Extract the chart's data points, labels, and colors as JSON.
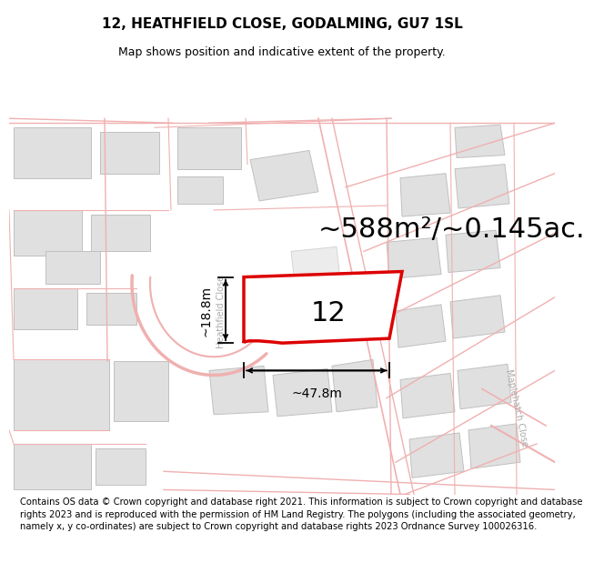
{
  "title_line1": "12, HEATHFIELD CLOSE, GODALMING, GU7 1SL",
  "title_line2": "Map shows position and indicative extent of the property.",
  "area_text": "~588m²/~0.145ac.",
  "plot_number": "12",
  "dim_width": "~47.8m",
  "dim_height": "~18.8m",
  "footer_text": "Contains OS data © Crown copyright and database right 2021. This information is subject to Crown copyright and database rights 2023 and is reproduced with the permission of HM Land Registry. The polygons (including the associated geometry, namely x, y co-ordinates) are subject to Crown copyright and database rights 2023 Ordnance Survey 100026316.",
  "map_bg": "#ffffff",
  "plot_fill": "#ffffff",
  "plot_edge_color": "#dd0000",
  "road_color": "#f0b0b0",
  "road_lw": 1.0,
  "building_fill": "#e0e0e0",
  "building_edge": "#c0c0c0",
  "title_fontsize": 11,
  "subtitle_fontsize": 9,
  "area_fontsize": 22,
  "plot_num_fontsize": 22,
  "footer_fontsize": 7.2,
  "road_label_color": "#aaaaaa",
  "road_label_size": 7
}
